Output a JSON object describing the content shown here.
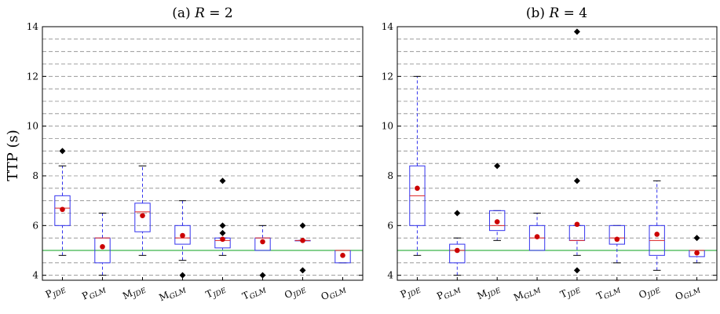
{
  "figure": {
    "ylabel": "TTP (s)"
  },
  "chart_data": [
    {
      "type": "box",
      "title": "(a) R = 2",
      "title_prefix": "(a) ",
      "title_var": "R",
      "title_rest": " = 2",
      "ylabel": "TTP (s)",
      "ylim": [
        3.8,
        14.0
      ],
      "yticks": [
        "4",
        "6",
        "8",
        "10",
        "12",
        "14"
      ],
      "grid": "horizontal dashed lines every 0.5",
      "reference_line": {
        "value": 5.0,
        "color": "#3cb44b"
      },
      "categories": [
        {
          "main": "P",
          "sub": "JDE",
          "whisker_low": 4.8,
          "q1": 6.0,
          "median": 6.7,
          "q3": 7.2,
          "whisker_high": 8.4,
          "mean": 6.65,
          "outliers": [
            9.0
          ]
        },
        {
          "main": "P",
          "sub": "GLM",
          "whisker_low": 4.0,
          "q1": 4.5,
          "median": 5.5,
          "q3": 5.5,
          "whisker_high": 6.5,
          "mean": 5.15,
          "outliers": []
        },
        {
          "main": "M",
          "sub": "JDE",
          "whisker_low": 4.8,
          "q1": 5.75,
          "median": 6.55,
          "q3": 6.9,
          "whisker_high": 8.4,
          "mean": 6.4,
          "outliers": []
        },
        {
          "main": "M",
          "sub": "GLM",
          "whisker_low": 4.6,
          "q1": 5.25,
          "median": 5.5,
          "q3": 6.0,
          "whisker_high": 7.0,
          "mean": 5.6,
          "outliers": [
            4.0
          ]
        },
        {
          "main": "T",
          "sub": "JDE",
          "whisker_low": 4.8,
          "q1": 5.1,
          "median": 5.4,
          "q3": 5.5,
          "whisker_high": 5.5,
          "mean": 5.45,
          "outliers": [
            7.8,
            6.0,
            5.7
          ]
        },
        {
          "main": "T",
          "sub": "GLM",
          "whisker_low": 5.0,
          "q1": 5.0,
          "median": 5.5,
          "q3": 5.5,
          "whisker_high": 6.0,
          "mean": 5.35,
          "outliers": [
            4.0
          ]
        },
        {
          "main": "O",
          "sub": "JDE",
          "whisker_low": 5.4,
          "q1": 5.4,
          "median": 5.4,
          "q3": 5.4,
          "whisker_high": 5.4,
          "mean": 5.4,
          "outliers": [
            6.0,
            4.2
          ]
        },
        {
          "main": "O",
          "sub": "GLM",
          "whisker_low": 4.5,
          "q1": 4.5,
          "median": 5.0,
          "q3": 5.0,
          "whisker_high": 5.0,
          "mean": 4.8,
          "outliers": []
        }
      ]
    },
    {
      "type": "box",
      "title": "(b) R = 4",
      "title_prefix": "(b) ",
      "title_var": "R",
      "title_rest": " = 4",
      "ylim": [
        3.8,
        14.0
      ],
      "yticks": [
        "4",
        "6",
        "8",
        "10",
        "12",
        "14"
      ],
      "grid": "horizontal dashed lines every 0.5",
      "reference_line": {
        "value": 5.0,
        "color": "#3cb44b"
      },
      "categories": [
        {
          "main": "P",
          "sub": "JDE",
          "whisker_low": 4.8,
          "q1": 6.0,
          "median": 7.2,
          "q3": 8.4,
          "whisker_high": 12.0,
          "mean": 7.5,
          "outliers": []
        },
        {
          "main": "P",
          "sub": "GLM",
          "whisker_low": 4.0,
          "q1": 4.5,
          "median": 5.0,
          "q3": 5.25,
          "whisker_high": 5.5,
          "mean": 5.0,
          "outliers": [
            6.5
          ]
        },
        {
          "main": "M",
          "sub": "JDE",
          "whisker_low": 5.4,
          "q1": 5.8,
          "median": 6.0,
          "q3": 6.6,
          "whisker_high": 6.6,
          "mean": 6.15,
          "outliers": [
            8.4
          ]
        },
        {
          "main": "M",
          "sub": "GLM",
          "whisker_low": 5.0,
          "q1": 5.0,
          "median": 5.5,
          "q3": 6.0,
          "whisker_high": 6.5,
          "mean": 5.55,
          "outliers": []
        },
        {
          "main": "T",
          "sub": "JDE",
          "whisker_low": 4.8,
          "q1": 5.4,
          "median": 5.4,
          "q3": 6.0,
          "whisker_high": 6.0,
          "mean": 6.05,
          "outliers": [
            13.8,
            7.8,
            4.2
          ]
        },
        {
          "main": "T",
          "sub": "GLM",
          "whisker_low": 4.5,
          "q1": 5.25,
          "median": 5.5,
          "q3": 6.0,
          "whisker_high": 6.0,
          "mean": 5.45,
          "outliers": []
        },
        {
          "main": "O",
          "sub": "JDE",
          "whisker_low": 4.2,
          "q1": 4.8,
          "median": 5.4,
          "q3": 6.0,
          "whisker_high": 7.8,
          "mean": 5.65,
          "outliers": []
        },
        {
          "main": "O",
          "sub": "GLM",
          "whisker_low": 4.5,
          "q1": 4.75,
          "median": 5.0,
          "q3": 5.0,
          "whisker_high": 5.0,
          "mean": 4.9,
          "outliers": [
            5.5
          ]
        }
      ]
    }
  ],
  "colors": {
    "box": "#3333ee",
    "whisker": "#3333ee",
    "median": "#dd2222",
    "mean": "#cc0000",
    "outlier": "#000000",
    "grid": "#8a8a8a",
    "axis": "#000000"
  }
}
